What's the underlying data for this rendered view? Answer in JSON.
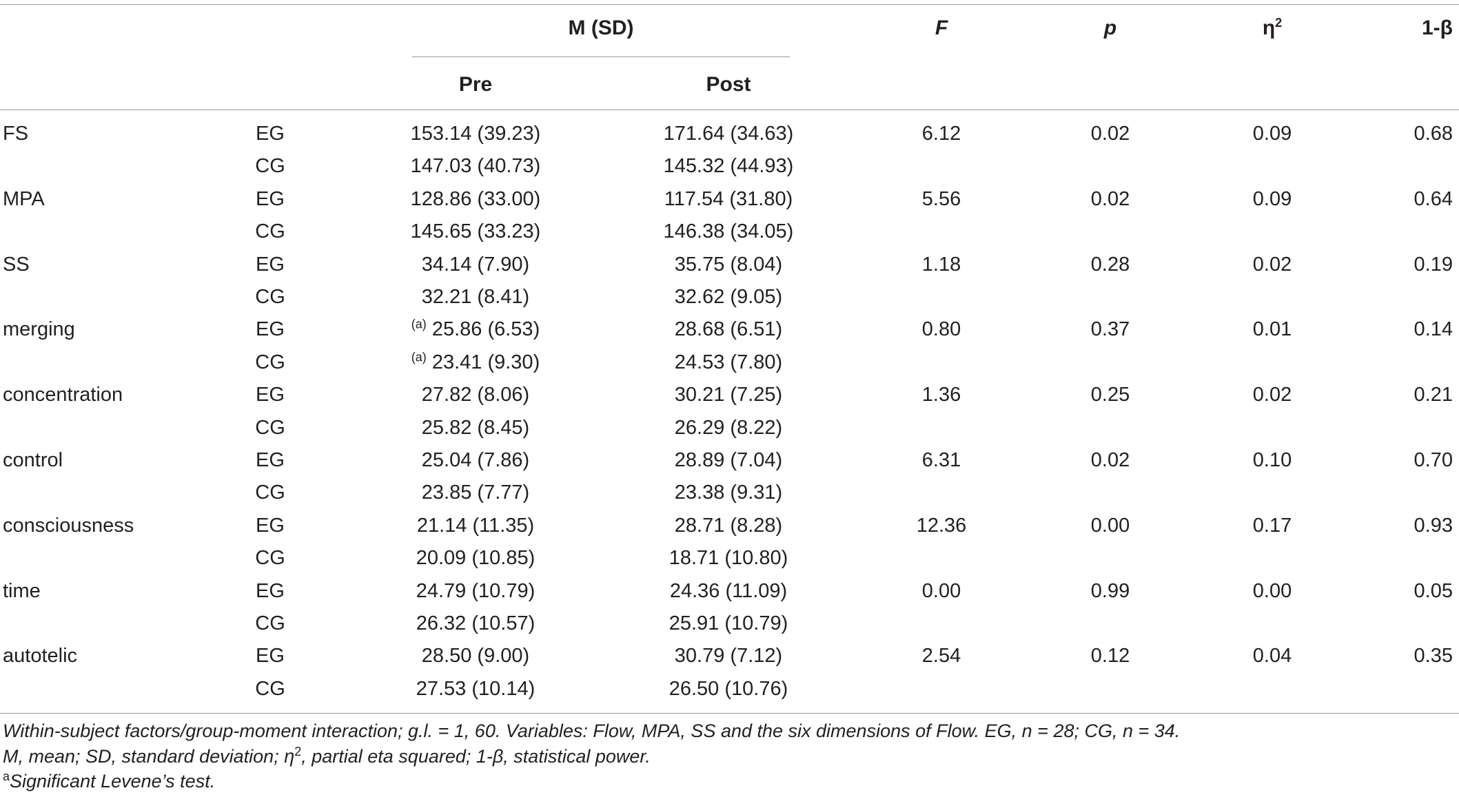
{
  "header": {
    "msd": "M (SD)",
    "pre": "Pre",
    "post": "Post",
    "F": "F",
    "p": "p",
    "eta_base": "η",
    "eta_sup": "2",
    "power": "1-β"
  },
  "rows": [
    {
      "variable": "FS",
      "group": "EG",
      "pre": "153.14 (39.23)",
      "post": "171.64 (34.63)",
      "F": "6.12",
      "p": "0.02",
      "eta": "0.09",
      "power": "0.68"
    },
    {
      "variable": "",
      "group": "CG",
      "pre": "147.03 (40.73)",
      "post": "145.32 (44.93)",
      "F": "",
      "p": "",
      "eta": "",
      "power": ""
    },
    {
      "variable": "MPA",
      "group": "EG",
      "pre": "128.86 (33.00)",
      "post": "117.54 (31.80)",
      "F": "5.56",
      "p": "0.02",
      "eta": "0.09",
      "power": "0.64"
    },
    {
      "variable": "",
      "group": "CG",
      "pre": "145.65 (33.23)",
      "post": "146.38 (34.05)",
      "F": "",
      "p": "",
      "eta": "",
      "power": ""
    },
    {
      "variable": "SS",
      "group": "EG",
      "pre": "34.14 (7.90)",
      "post": "35.75 (8.04)",
      "F": "1.18",
      "p": "0.28",
      "eta": "0.02",
      "power": "0.19"
    },
    {
      "variable": "",
      "group": "CG",
      "pre": "32.21 (8.41)",
      "post": "32.62 (9.05)",
      "F": "",
      "p": "",
      "eta": "",
      "power": ""
    },
    {
      "variable": "merging",
      "group": "EG",
      "pre_mark": "(a)",
      "pre": "25.86 (6.53)",
      "post": "28.68 (6.51)",
      "F": "0.80",
      "p": "0.37",
      "eta": "0.01",
      "power": "0.14"
    },
    {
      "variable": "",
      "group": "CG",
      "pre_mark": "(a)",
      "pre": "23.41 (9.30)",
      "post": "24.53 (7.80)",
      "F": "",
      "p": "",
      "eta": "",
      "power": ""
    },
    {
      "variable": "concentration",
      "group": "EG",
      "pre": "27.82 (8.06)",
      "post": "30.21 (7.25)",
      "F": "1.36",
      "p": "0.25",
      "eta": "0.02",
      "power": "0.21"
    },
    {
      "variable": "",
      "group": "CG",
      "pre": "25.82 (8.45)",
      "post": "26.29 (8.22)",
      "F": "",
      "p": "",
      "eta": "",
      "power": ""
    },
    {
      "variable": "control",
      "group": "EG",
      "pre": "25.04 (7.86)",
      "post": "28.89 (7.04)",
      "F": "6.31",
      "p": "0.02",
      "eta": "0.10",
      "power": "0.70"
    },
    {
      "variable": "",
      "group": "CG",
      "pre": "23.85 (7.77)",
      "post": "23.38 (9.31)",
      "F": "",
      "p": "",
      "eta": "",
      "power": ""
    },
    {
      "variable": "consciousness",
      "group": "EG",
      "pre": "21.14 (11.35)",
      "post": "28.71 (8.28)",
      "F": "12.36",
      "p": "0.00",
      "eta": "0.17",
      "power": "0.93"
    },
    {
      "variable": "",
      "group": "CG",
      "pre": "20.09 (10.85)",
      "post": "18.71 (10.80)",
      "F": "",
      "p": "",
      "eta": "",
      "power": ""
    },
    {
      "variable": "time",
      "group": "EG",
      "pre": "24.79 (10.79)",
      "post": "24.36 (11.09)",
      "F": "0.00",
      "p": "0.99",
      "eta": "0.00",
      "power": "0.05"
    },
    {
      "variable": "",
      "group": "CG",
      "pre": "26.32 (10.57)",
      "post": "25.91 (10.79)",
      "F": "",
      "p": "",
      "eta": "",
      "power": ""
    },
    {
      "variable": "autotelic",
      "group": "EG",
      "pre": "28.50 (9.00)",
      "post": "30.79 (7.12)",
      "F": "2.54",
      "p": "0.12",
      "eta": "0.04",
      "power": "0.35"
    },
    {
      "variable": "",
      "group": "CG",
      "pre": "27.53 (10.14)",
      "post": "26.50 (10.76)",
      "F": "",
      "p": "",
      "eta": "",
      "power": ""
    }
  ],
  "footnotes": {
    "line1": "Within-subject factors/group-moment interaction; g.l. = 1, 60. Variables: Flow, MPA, SS and the six dimensions of Flow. EG, n = 28; CG, n = 34.",
    "line2_a": "M, mean; SD, standard deviation; η",
    "line2_sup": "2",
    "line2_b": ", partial eta squared; 1-β, statistical power.",
    "line3_mark": "a",
    "line3": "Significant Levene’s test."
  }
}
